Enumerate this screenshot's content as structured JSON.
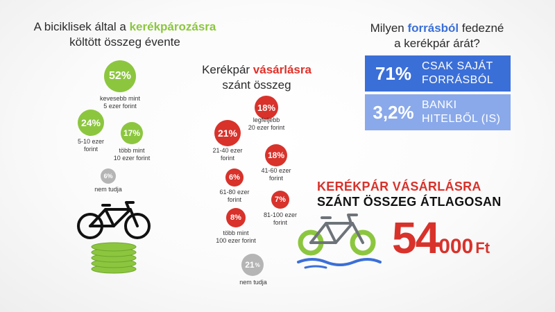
{
  "left": {
    "title_pre": "A biciklisek által a ",
    "title_hl": "kerékpározásra",
    "title_post": "költött összeg évente",
    "items": [
      {
        "pct": "52%",
        "label1": "kevesebb mint",
        "label2": "5 ezer forint"
      },
      {
        "pct": "24%",
        "label1": "5-10 ezer",
        "label2": "forint"
      },
      {
        "pct": "17%",
        "label1": "több mint",
        "label2": "10 ezer forint"
      },
      {
        "pct": "6%",
        "label1": "nem tudja",
        "label2": ""
      }
    ]
  },
  "middle": {
    "title_pre": "Kerékpár ",
    "title_hl": "vásárlásra",
    "title_post": "szánt összeg",
    "items": [
      {
        "pct": "18%",
        "label1": "legfeljebb",
        "label2": "20 ezer forint"
      },
      {
        "pct": "21%",
        "label1": "21-40 ezer",
        "label2": "forint"
      },
      {
        "pct": "18%",
        "label1": "41-60 ezer",
        "label2": "forint"
      },
      {
        "pct": "6%",
        "label1": "61-80 ezer",
        "label2": "forint"
      },
      {
        "pct": "7%",
        "label1": "81-100 ezer",
        "label2": "forint"
      },
      {
        "pct": "8%",
        "label1": "több mint",
        "label2": "100 ezer forint"
      },
      {
        "pct": "21",
        "pct_sub": "%",
        "label1": "nem tudja",
        "label2": ""
      }
    ]
  },
  "right": {
    "title_pre": "Milyen ",
    "title_hl": "forrásból",
    "title_mid": " fedezné",
    "title_post": "a kerékpár árát?",
    "sources": [
      {
        "pct": "71%",
        "label1": "CSAK SAJÁT",
        "label2": "FORRÁSBÓL",
        "color": "#3b6fd8"
      },
      {
        "pct": "3,2%",
        "label1": "BANKI",
        "label2": "HITELBŐL (IS)",
        "color": "#8aa9ea"
      }
    ]
  },
  "average": {
    "line1": "KERÉKPÁR VÁSÁRLÁSRA",
    "line2": "SZÁNT ÖSSZEG ÁTLAGOSAN",
    "big": "54",
    "rest": "000",
    "unit": "Ft"
  },
  "colors": {
    "green": "#8cc63f",
    "red": "#d8322b",
    "blue": "#3b6fd8",
    "light_blue": "#8aa9ea",
    "gray": "#b5b5b5"
  }
}
